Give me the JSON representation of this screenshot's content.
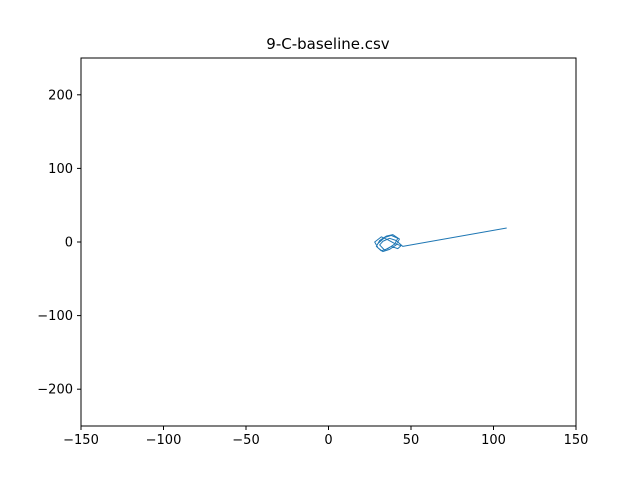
{
  "chart_data": {
    "type": "line",
    "title": "9-C-baseline.csv",
    "xlabel": "",
    "ylabel": "",
    "xlim": [
      -150,
      150
    ],
    "ylim": [
      -250,
      250
    ],
    "xticks": [
      -150,
      -100,
      -50,
      0,
      50,
      100,
      150
    ],
    "yticks": [
      -200,
      -100,
      0,
      100,
      200
    ],
    "xtick_labels": [
      "−150",
      "−100",
      "−50",
      "0",
      "50",
      "100",
      "150"
    ],
    "ytick_labels": [
      "−200",
      "−100",
      "0",
      "100",
      "200"
    ],
    "grid": false,
    "series": [
      {
        "color": "#1f77b4",
        "x": [
          30,
          34,
          38,
          42,
          40,
          36,
          32,
          29,
          31,
          35,
          39,
          43,
          41,
          37,
          33,
          30,
          28,
          32,
          36,
          40,
          44,
          42,
          38,
          34,
          31,
          33,
          37,
          41,
          45,
          108
        ],
        "y": [
          -2,
          6,
          9,
          5,
          -3,
          -9,
          -12,
          -6,
          2,
          8,
          10,
          4,
          -4,
          -10,
          -13,
          -8,
          0,
          7,
          3,
          -2,
          -5,
          -9,
          -6,
          -11,
          -4,
          1,
          5,
          2,
          -6,
          19
        ]
      }
    ]
  }
}
